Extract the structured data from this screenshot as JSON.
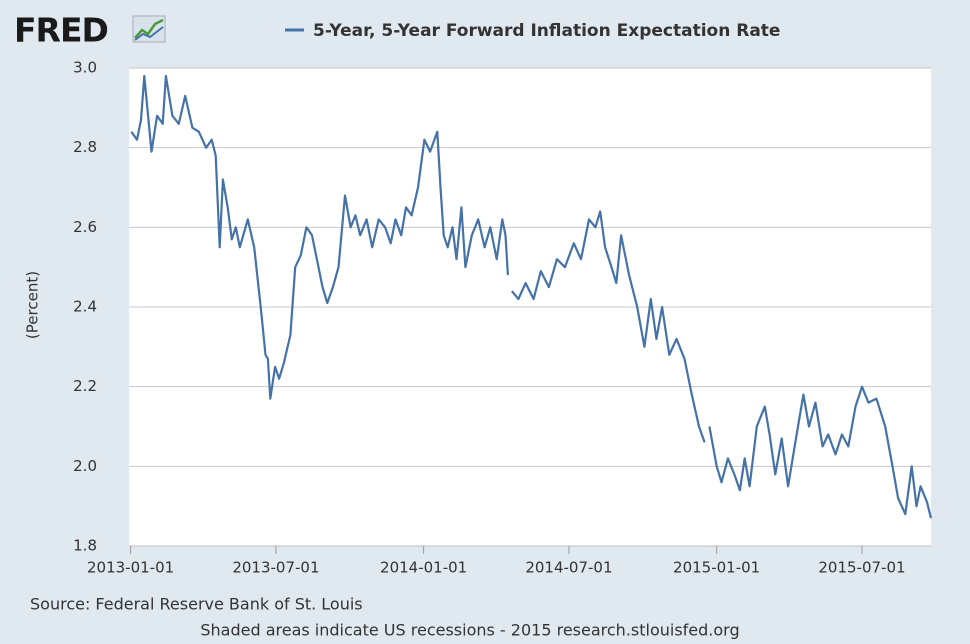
{
  "brand": {
    "logo": "FRED"
  },
  "chart_data": {
    "type": "line",
    "y_label": "(Percent)",
    "source": "Source: Federal Reserve Bank of St. Louis",
    "note": "Shaded areas indicate US recessions - 2015 research.stlouisfed.org",
    "x": [
      "2013-01-02",
      "2013-01-09",
      "2013-01-14",
      "2013-01-18",
      "2013-01-27",
      "2013-02-03",
      "2013-02-10",
      "2013-02-14",
      "2013-02-22",
      "2013-03-02",
      "2013-03-10",
      "2013-03-19",
      "2013-03-27",
      "2013-04-05",
      "2013-04-12",
      "2013-04-17",
      "2013-04-22",
      "2013-04-26",
      "2013-05-02",
      "2013-05-07",
      "2013-05-12",
      "2013-05-17",
      "2013-05-27",
      "2013-06-04",
      "2013-06-12",
      "2013-06-18",
      "2013-06-21",
      "2013-06-24",
      "2013-06-30",
      "2013-07-05",
      "2013-07-11",
      "2013-07-19",
      "2013-07-25",
      "2013-08-01",
      "2013-08-08",
      "2013-08-15",
      "2013-08-23",
      "2013-08-28",
      "2013-09-03",
      "2013-09-10",
      "2013-09-17",
      "2013-09-25",
      "2013-10-02",
      "2013-10-08",
      "2013-10-14",
      "2013-10-22",
      "2013-10-29",
      "2013-11-06",
      "2013-11-14",
      "2013-11-21",
      "2013-11-27",
      "2013-12-04",
      "2013-12-10",
      "2013-12-17",
      "2013-12-25",
      "2014-01-02",
      "2014-01-09",
      "2014-01-18",
      "2014-01-22",
      "2014-01-26",
      "2014-01-31",
      "2014-02-06",
      "2014-02-11",
      "2014-02-17",
      "2014-02-22",
      "2014-03-02",
      "2014-03-10",
      "2014-03-18",
      "2014-03-25",
      "2014-04-02",
      "2014-04-09",
      "2014-04-13",
      "2014-04-16",
      "2014-04-18",
      "2014-04-21",
      "2014-04-29",
      "2014-05-08",
      "2014-05-18",
      "2014-05-27",
      "2014-06-06",
      "2014-06-16",
      "2014-06-26",
      "2014-07-07",
      "2014-07-16",
      "2014-07-26",
      "2014-08-03",
      "2014-08-09",
      "2014-08-15",
      "2014-08-23",
      "2014-08-29",
      "2014-09-04",
      "2014-09-14",
      "2014-09-24",
      "2014-10-03",
      "2014-10-11",
      "2014-10-18",
      "2014-10-25",
      "2014-11-03",
      "2014-11-12",
      "2014-11-22",
      "2014-12-01",
      "2014-12-10",
      "2014-12-17",
      "2014-12-19",
      "2014-12-23",
      "2015-01-01",
      "2015-01-07",
      "2015-01-15",
      "2015-01-23",
      "2015-01-30",
      "2015-02-05",
      "2015-02-11",
      "2015-02-20",
      "2015-03-02",
      "2015-03-08",
      "2015-03-15",
      "2015-03-23",
      "2015-03-31",
      "2015-04-09",
      "2015-04-19",
      "2015-04-26",
      "2015-05-04",
      "2015-05-13",
      "2015-05-20",
      "2015-05-29",
      "2015-06-06",
      "2015-06-14",
      "2015-06-23",
      "2015-07-01",
      "2015-07-09",
      "2015-07-19",
      "2015-07-30",
      "2015-08-08",
      "2015-08-15",
      "2015-08-24",
      "2015-09-01",
      "2015-09-07",
      "2015-09-12",
      "2015-09-20",
      "2015-09-25"
    ],
    "series": [
      {
        "name": "5-Year, 5-Year Forward Inflation Expectation Rate",
        "color": "#4572a7",
        "values": [
          2.84,
          2.82,
          2.87,
          2.98,
          2.79,
          2.88,
          2.86,
          2.98,
          2.88,
          2.86,
          2.93,
          2.85,
          2.84,
          2.8,
          2.82,
          2.78,
          2.55,
          2.72,
          2.65,
          2.57,
          2.6,
          2.55,
          2.62,
          2.55,
          2.4,
          2.28,
          2.27,
          2.17,
          2.25,
          2.22,
          2.26,
          2.33,
          2.5,
          2.53,
          2.6,
          2.58,
          2.5,
          2.45,
          2.41,
          2.45,
          2.5,
          2.68,
          2.6,
          2.63,
          2.58,
          2.62,
          2.55,
          2.62,
          2.6,
          2.56,
          2.62,
          2.58,
          2.65,
          2.63,
          2.7,
          2.82,
          2.79,
          2.84,
          2.7,
          2.58,
          2.55,
          2.6,
          2.52,
          2.65,
          2.5,
          2.58,
          2.62,
          2.55,
          2.6,
          2.52,
          2.62,
          2.58,
          2.48,
          null,
          2.44,
          2.42,
          2.46,
          2.42,
          2.49,
          2.45,
          2.52,
          2.5,
          2.56,
          2.52,
          2.62,
          2.6,
          2.64,
          2.55,
          2.5,
          2.46,
          2.58,
          2.48,
          2.4,
          2.3,
          2.42,
          2.32,
          2.4,
          2.28,
          2.32,
          2.27,
          2.18,
          2.1,
          2.06,
          null,
          2.1,
          2.0,
          1.96,
          2.02,
          1.98,
          1.94,
          2.02,
          1.95,
          2.1,
          2.15,
          2.08,
          1.98,
          2.07,
          1.95,
          2.06,
          2.18,
          2.1,
          2.16,
          2.05,
          2.08,
          2.03,
          2.08,
          2.05,
          2.15,
          2.2,
          2.16,
          2.17,
          2.1,
          2.0,
          1.92,
          1.88,
          2.0,
          1.9,
          1.95,
          1.91,
          1.87
        ]
      }
    ],
    "xlim": [
      "2012-12-30",
      "2015-09-25"
    ],
    "xticks": [
      "2013-01-01",
      "2013-07-01",
      "2014-01-01",
      "2014-07-01",
      "2015-01-01",
      "2015-07-01"
    ],
    "ylim": [
      1.8,
      3.0
    ],
    "yticks": [
      {
        "value": 1.8,
        "label": "1.8"
      },
      {
        "value": 2.0,
        "label": "2.0"
      },
      {
        "value": 2.2,
        "label": "2.2"
      },
      {
        "value": 2.4,
        "label": "2.4"
      },
      {
        "value": 2.6,
        "label": "2.6"
      },
      {
        "value": 2.8,
        "label": "2.8"
      },
      {
        "value": 3.0,
        "label": "3.0"
      }
    ],
    "grid": true,
    "legend": "top"
  }
}
